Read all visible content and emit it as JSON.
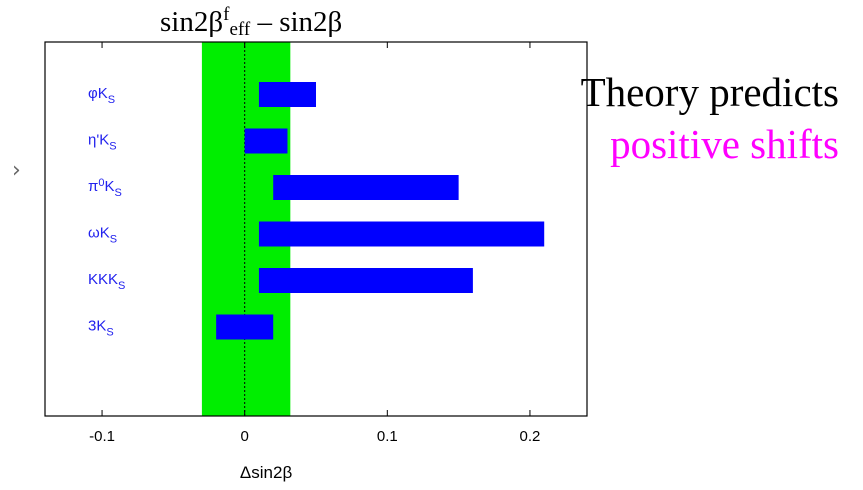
{
  "title": {
    "main": "sin2β",
    "sup": "f",
    "sub": "eff",
    "rest": "– sin2β"
  },
  "annotation": {
    "line1": "Theory predicts",
    "line2": "positive shifts",
    "line1_color": "#000000",
    "line2_color": "#ff00ff"
  },
  "nav_glyph": "›",
  "chart_data": {
    "type": "bar",
    "orientation": "horizontal",
    "categories": [
      {
        "base": "φK",
        "sub": "S"
      },
      {
        "base": "η'K",
        "sub": "S"
      },
      {
        "base": "π",
        "sup": "0",
        "mid": "K",
        "sub": "S"
      },
      {
        "base": "ωK",
        "sub": "S"
      },
      {
        "base": "KKK",
        "sub": "S"
      },
      {
        "base": "3K",
        "sub": "S"
      }
    ],
    "ranges": [
      [
        0.01,
        0.05
      ],
      [
        0.0,
        0.03
      ],
      [
        0.02,
        0.15
      ],
      [
        0.01,
        0.21
      ],
      [
        0.01,
        0.16
      ],
      [
        -0.02,
        0.02
      ]
    ],
    "band": [
      -0.03,
      0.032
    ],
    "reference_line": 0,
    "xlim": [
      -0.14,
      0.24
    ],
    "xticks": [
      -0.1,
      0,
      0.1,
      0.2
    ],
    "xticklabels": [
      "-0.1",
      "0",
      "0.1",
      "0.2"
    ],
    "xlabel": "Δsin2β",
    "colors": {
      "bar": "#0000ff",
      "band": "#00ee00",
      "label": "#2222ee"
    }
  }
}
